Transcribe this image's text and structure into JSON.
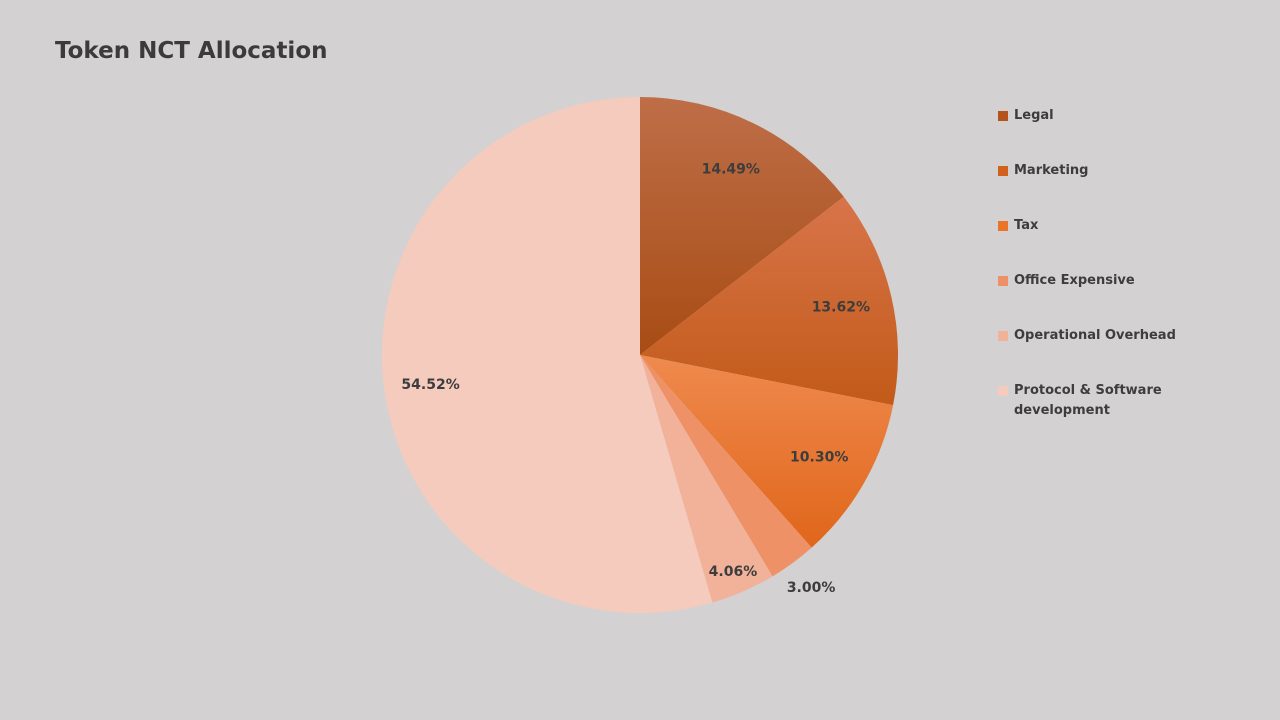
{
  "chart_data": {
    "type": "pie",
    "title": "Token NCT Allocation",
    "slices": [
      {
        "label": "Legal",
        "value": 14.49,
        "display": "14.49%",
        "color": "#b4541a",
        "light": "#be6e48",
        "dark": "#a84c14"
      },
      {
        "label": "Marketing",
        "value": 13.62,
        "display": "13.62%",
        "color": "#d1621e",
        "light": "#d8744a",
        "dark": "#c25a18"
      },
      {
        "label": "Tax",
        "value": 10.3,
        "display": "10.30%",
        "color": "#ea7428",
        "light": "#ef8a4e",
        "dark": "#e0661a"
      },
      {
        "label": "Office Expensive",
        "value": 3.0,
        "display": "3.00%",
        "color": "#ee9167",
        "light": "#ee9167",
        "dark": "#ee9167"
      },
      {
        "label": "Operational Overhead",
        "value": 4.06,
        "display": "4.06%",
        "color": "#f2b29a",
        "light": "#f2b29a",
        "dark": "#f2b29a"
      },
      {
        "label": "Protocol & Software development",
        "value": 54.52,
        "display": "54.52%",
        "color": "#f5cbbd",
        "light": "#f5cbbd",
        "dark": "#f5cbbd"
      }
    ],
    "legend_position": "right"
  }
}
